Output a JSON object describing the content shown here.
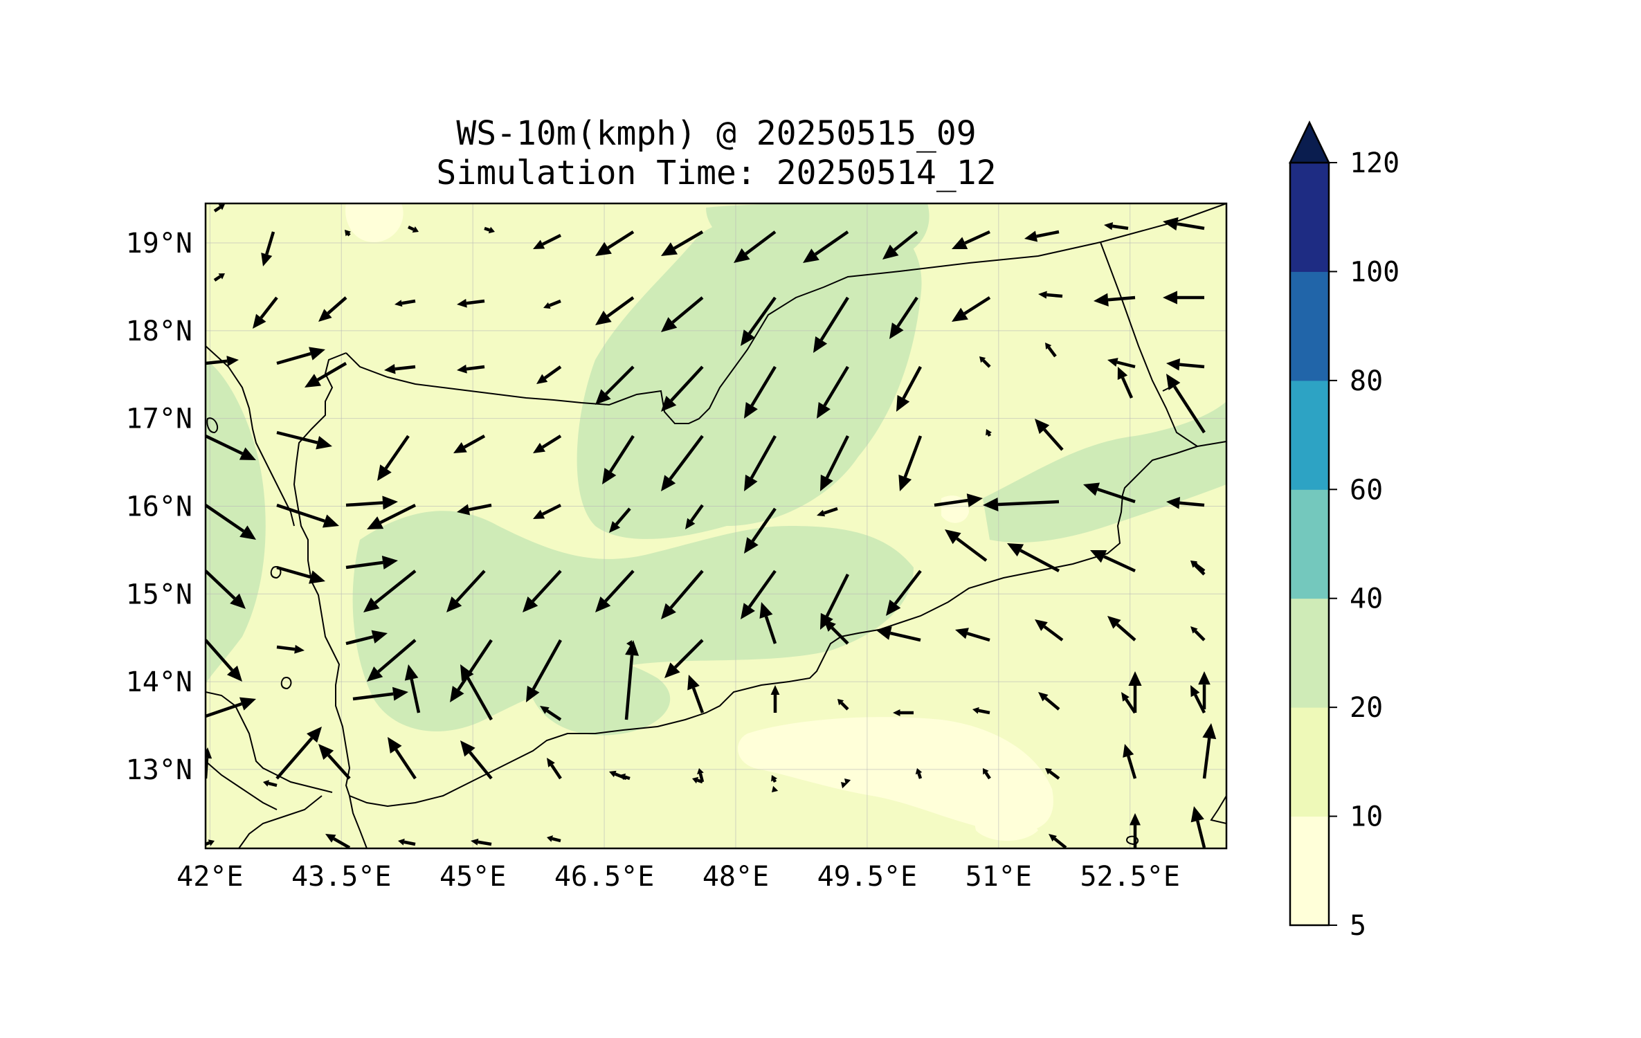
{
  "figure": {
    "title_line1": "WS-10m(kmph) @ 20250515_09",
    "title_line2": "Simulation Time: 20250514_12"
  },
  "map": {
    "lon_range": [
      41.95,
      53.6
    ],
    "lat_range": [
      12.1,
      19.45
    ],
    "x_ticks": [
      {
        "value": 42.0,
        "label": "42°E"
      },
      {
        "value": 43.5,
        "label": "43.5°E"
      },
      {
        "value": 45.0,
        "label": "45°E"
      },
      {
        "value": 46.5,
        "label": "46.5°E"
      },
      {
        "value": 48.0,
        "label": "48°E"
      },
      {
        "value": 49.5,
        "label": "49.5°E"
      },
      {
        "value": 51.0,
        "label": "51°E"
      },
      {
        "value": 52.5,
        "label": "52.5°E"
      }
    ],
    "y_ticks": [
      {
        "value": 13,
        "label": "13°N"
      },
      {
        "value": 14,
        "label": "14°N"
      },
      {
        "value": 15,
        "label": "15°N"
      },
      {
        "value": 16,
        "label": "16°N"
      },
      {
        "value": 17,
        "label": "17°N"
      },
      {
        "value": 18,
        "label": "18°N"
      },
      {
        "value": 19,
        "label": "19°N"
      }
    ],
    "gridlines": true,
    "background_color": "#f4fbc4",
    "border_color": "#000000",
    "vector_color": "#000000"
  },
  "colorbar": {
    "levels": [
      {
        "label": "5",
        "color": "#ffffd9"
      },
      {
        "label": "10",
        "color": "#eef9b8"
      },
      {
        "label": "20",
        "color": "#cfebb7"
      },
      {
        "label": "40",
        "color": "#74c8bd"
      },
      {
        "label": "60",
        "color": "#2da3c4"
      },
      {
        "label": "80",
        "color": "#2165a9"
      },
      {
        "label": "100",
        "color": "#1e2c83"
      },
      {
        "label": "120",
        "color": "#0a1d4f"
      }
    ],
    "extend": "max"
  }
}
